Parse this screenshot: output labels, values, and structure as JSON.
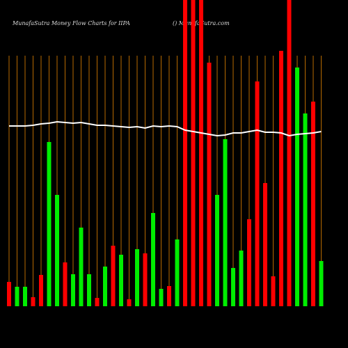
{
  "chart_data": {
    "type": "bar",
    "title": "MunafaSutra  Money Flow  Charts for IIPA",
    "subtitle": "() MunafaSutra.com",
    "categories": [
      null,
      null,
      null,
      null,
      null,
      null,
      null,
      null,
      null,
      null,
      null,
      null,
      null,
      null,
      null,
      null,
      null,
      null,
      null,
      null,
      null,
      null,
      null,
      null,
      null,
      null,
      null,
      null,
      null,
      null,
      null,
      null,
      null,
      null,
      null,
      null,
      null,
      null,
      null,
      null
    ],
    "values": [
      35,
      28,
      28,
      13,
      45,
      236,
      160,
      63,
      46,
      113,
      46,
      12,
      57,
      87,
      74,
      10,
      82,
      76,
      134,
      25,
      29,
      96,
      440,
      440,
      440,
      350,
      160,
      240,
      55,
      80,
      125,
      323,
      177,
      43,
      367,
      440,
      343,
      277,
      294,
      65
    ],
    "colors": [
      "#ff0000",
      "#00ee00",
      "#00ee00",
      "#ff0000",
      "#ff0000",
      "#00ee00",
      "#00ee00",
      "#ff0000",
      "#00ee00",
      "#00ee00",
      "#00ee00",
      "#ff0000",
      "#00ee00",
      "#ff0000",
      "#00ee00",
      "#ff0000",
      "#00ee00",
      "#ff0000",
      "#00ee00",
      "#00ee00",
      "#ff0000",
      "#00ee00",
      "#ff0000",
      "#ff0000",
      "#ff0000",
      "#ff0000",
      "#00ee00",
      "#00ee00",
      "#00ee00",
      "#00ee00",
      "#ff0000",
      "#ff0000",
      "#ff0000",
      "#ff0000",
      "#ff0000",
      "#ff0000",
      "#00ee00",
      "#00ee00",
      "#ff0000",
      "#00ee00"
    ],
    "line": {
      "color": "#ffffff",
      "values": [
        259,
        259,
        259,
        260,
        262,
        263,
        265,
        264,
        263,
        264,
        262,
        260,
        260,
        259,
        258,
        257,
        258,
        256,
        259,
        258,
        259,
        258,
        253,
        251,
        249,
        247,
        245,
        246,
        249,
        249,
        251,
        253,
        250,
        250,
        249,
        245,
        247,
        248,
        249,
        251
      ]
    },
    "ylim": [
      0,
      440
    ],
    "grid": true,
    "grid_color": "#b86a00"
  }
}
